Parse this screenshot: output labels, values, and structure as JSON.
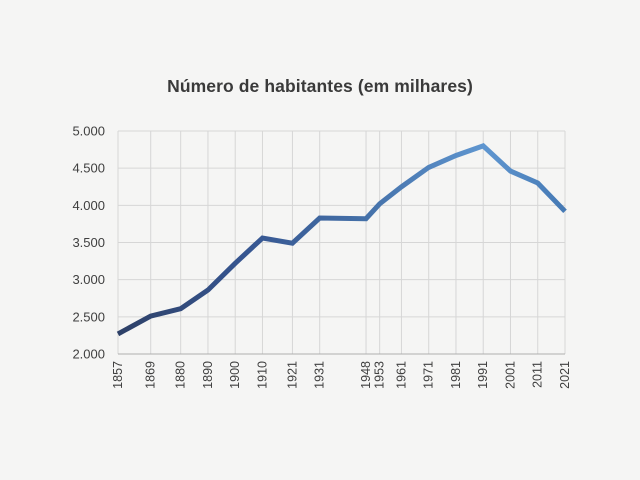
{
  "chart": {
    "title": "Número de habitantes (em milhares)"
  },
  "colors": {
    "background": "#f5f5f4",
    "grid": "#d6d6d6",
    "axis": "#aeaeae",
    "tick_text": "#3f3f3f",
    "title_text": "#3a3a3a",
    "line_gradient": [
      "#2d4067",
      "#365590",
      "#4470a8",
      "#5f96d0",
      "#4579b4"
    ]
  },
  "chart_data": {
    "type": "line",
    "title": "Número de habitantes (em milhares)",
    "x": [
      1857,
      1869,
      1880,
      1890,
      1900,
      1910,
      1921,
      1931,
      1948,
      1953,
      1961,
      1971,
      1981,
      1991,
      2001,
      2011,
      2021
    ],
    "x_tick_labels": [
      "1857",
      "1869",
      "1880",
      "1890",
      "1900",
      "1910",
      "1921",
      "1931",
      "1948",
      "1953",
      "1961",
      "1971",
      "1981",
      "1991",
      "2001",
      "2011",
      "2021"
    ],
    "values": [
      2270,
      2510,
      2610,
      2860,
      3220,
      3560,
      3490,
      3830,
      3820,
      4020,
      4250,
      4510,
      4670,
      4800,
      4460,
      4300,
      3920
    ],
    "y_ticks": [
      2000,
      2500,
      3000,
      3500,
      4000,
      4500,
      5000
    ],
    "y_tick_labels": [
      "2.000",
      "2.500",
      "3.000",
      "3.500",
      "4.000",
      "4.500",
      "5.000"
    ],
    "xlim": [
      1857,
      2021
    ],
    "ylim": [
      2000,
      5000
    ],
    "x_axis_scale": "proportional-to-year",
    "grid": "both",
    "legend": "none",
    "line_width": 5
  }
}
